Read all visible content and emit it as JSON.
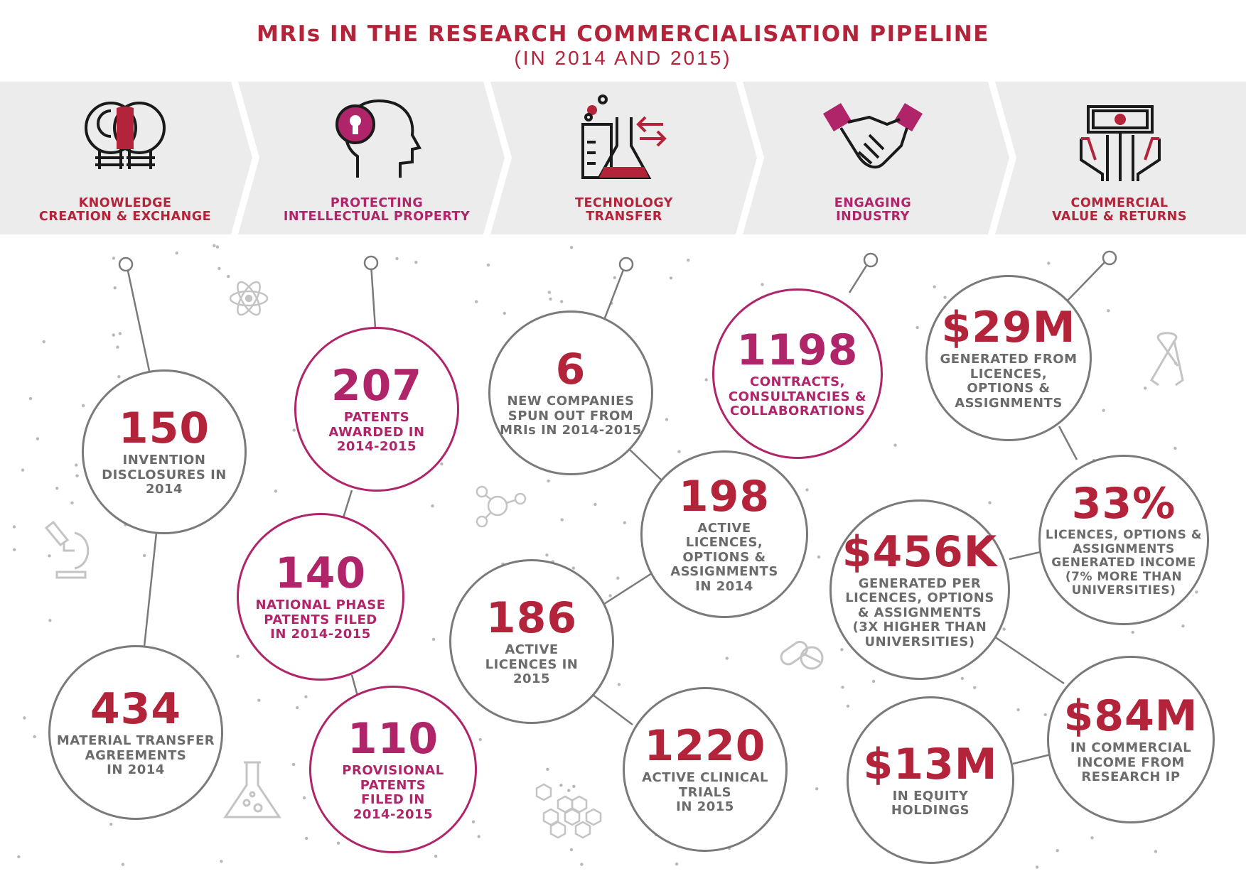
{
  "title": "MRIs IN THE RESEARCH COMMERCIALISATION PIPELINE",
  "subtitle": "(IN 2014 AND 2015)",
  "colors": {
    "red": "#b3233a",
    "magenta": "#b0256a",
    "grey": "#7a7a7a",
    "banner": "#ececec",
    "dot": "#b8b8b8"
  },
  "stages": [
    {
      "icon": "lightbulbs-icon",
      "label1": "KNOWLEDGE",
      "label2": "CREATION & EXCHANGE",
      "color": "#b3233a"
    },
    {
      "icon": "head-keyhole-icon",
      "label1": "PROTECTING",
      "label2": "INTELLECTUAL PROPERTY",
      "color": "#b0256a"
    },
    {
      "icon": "lab-flasks-icon",
      "label1": "TECHNOLOGY",
      "label2": "TRANSFER",
      "color": "#b3233a"
    },
    {
      "icon": "handshake-icon",
      "label1": "ENGAGING",
      "label2": "INDUSTRY",
      "color": "#b0256a"
    },
    {
      "icon": "hands-money-icon",
      "label1": "COMMERCIAL",
      "label2": "VALUE & RETURNS",
      "color": "#b3233a"
    }
  ],
  "stats": {
    "disclosures": {
      "value": "150",
      "l1": "INVENTION",
      "l2": "DISCLOSURES IN",
      "l3": "2014"
    },
    "mta": {
      "value": "434",
      "l1": "MATERIAL TRANSFER",
      "l2": "AGREEMENTS",
      "l3": "IN 2014"
    },
    "patents": {
      "value": "207",
      "l1": "PATENTS",
      "l2": "AWARDED IN",
      "l3": "2014-2015"
    },
    "national": {
      "value": "140",
      "l1": "NATIONAL PHASE",
      "l2": "PATENTS FILED",
      "l3": "IN 2014-2015"
    },
    "provisional": {
      "value": "110",
      "l1": "PROVISIONAL",
      "l2": "PATENTS",
      "l3": "FILED IN",
      "l4": "2014-2015"
    },
    "spinouts": {
      "value": "6",
      "l1": "NEW COMPANIES",
      "l2": "SPUN OUT FROM",
      "l3": "MRIs IN 2014-2015"
    },
    "active_lic_2014": {
      "value": "198",
      "l1": "ACTIVE",
      "l2": "LICENCES,",
      "l3": "OPTIONS &",
      "l4": "ASSIGNMENTS",
      "l5": "IN 2014"
    },
    "active_lic_2015": {
      "value": "186",
      "l1": "ACTIVE",
      "l2": "LICENCES IN",
      "l3": "2015"
    },
    "trials": {
      "value": "1220",
      "l1": "ACTIVE CLINICAL",
      "l2": "TRIALS",
      "l3": "IN 2015"
    },
    "contracts": {
      "value": "1198",
      "l1": "CONTRACTS,",
      "l2": "CONSULTANCIES &",
      "l3": "COLLABORATIONS"
    },
    "generated": {
      "value": "$29M",
      "l1": "GENERATED FROM",
      "l2": "LICENCES,",
      "l3": "OPTIONS &",
      "l4": "ASSIGNMENTS"
    },
    "percent": {
      "value": "33%",
      "l1": "LICENCES, OPTIONS &",
      "l2": "ASSIGNMENTS",
      "l3": "GENERATED INCOME",
      "l4": "(7% MORE THAN",
      "l5": "UNIVERSITIES)"
    },
    "per_licence": {
      "value": "$456K",
      "l1": "GENERATED PER",
      "l2": "LICENCES, OPTIONS",
      "l3": "& ASSIGNMENTS",
      "l4": "(3X HIGHER THAN",
      "l5": "UNIVERSITIES)"
    },
    "income": {
      "value": "$84M",
      "l1": "IN COMMERCIAL",
      "l2": "INCOME FROM",
      "l3": "RESEARCH IP"
    },
    "equity": {
      "value": "$13M",
      "l1": "IN EQUITY",
      "l2": "HOLDINGS"
    }
  }
}
